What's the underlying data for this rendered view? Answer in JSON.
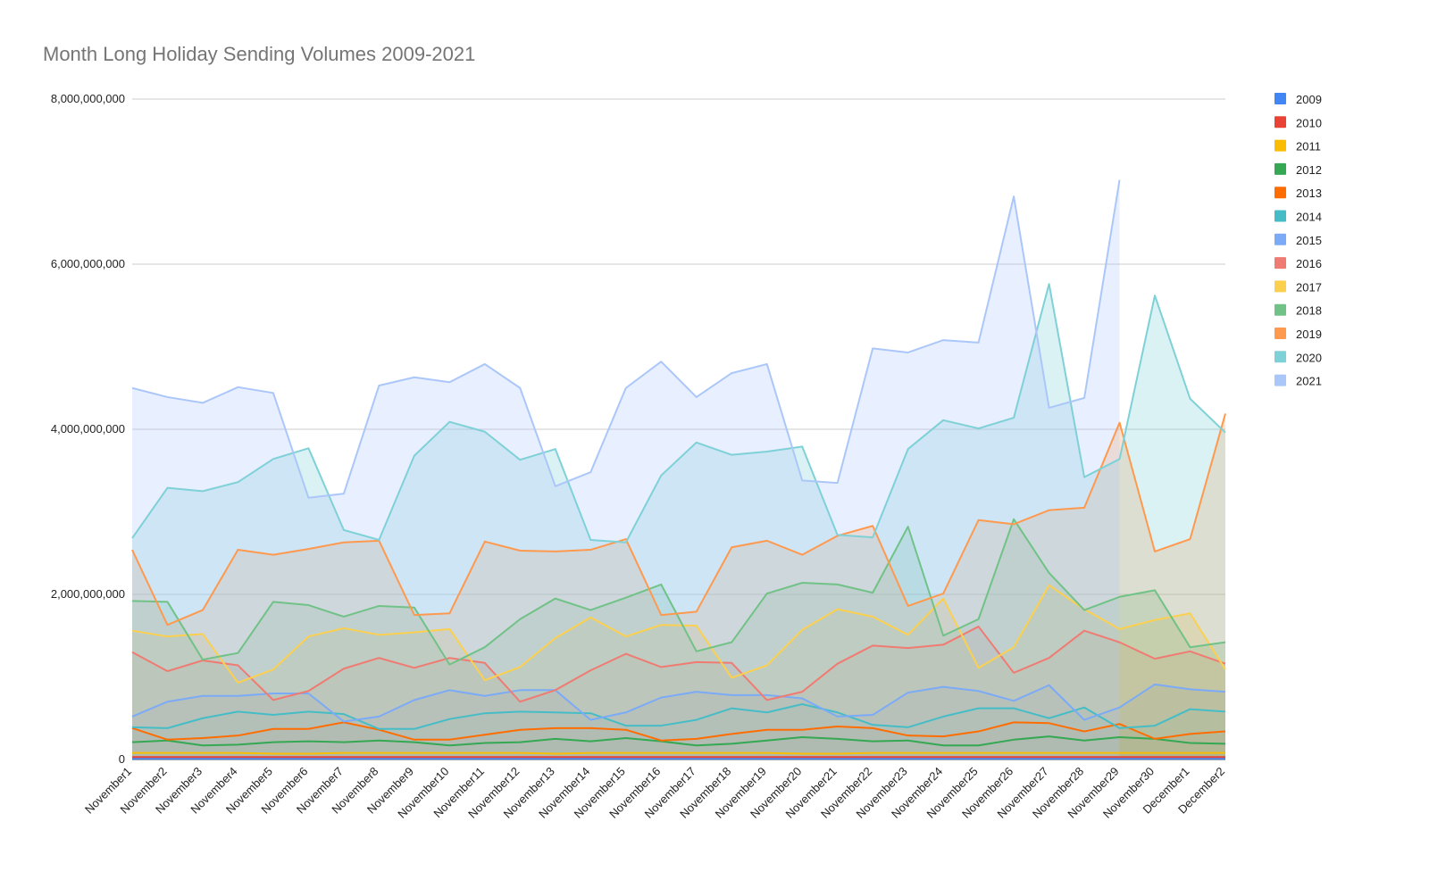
{
  "chart_data": {
    "type": "area",
    "title": "Month Long Holiday Sending Volumes 2009-2021",
    "categories": [
      "November1",
      "November2",
      "November3",
      "November4",
      "November5",
      "November6",
      "November7",
      "November8",
      "November9",
      "November10",
      "November11",
      "November12",
      "November13",
      "November14",
      "November15",
      "November16",
      "November17",
      "November18",
      "November19",
      "November20",
      "November21",
      "November22",
      "November23",
      "November24",
      "November25",
      "November26",
      "November27",
      "November28",
      "November29",
      "November30",
      "December1",
      "December2"
    ],
    "ylim": [
      0,
      8000000000.0
    ],
    "yticks": [
      0,
      {
        "value": 2000000000.0,
        "label": "2,000,000,000"
      },
      {
        "value": 4000000000.0,
        "label": "4,000,000,000"
      },
      {
        "value": 6000000000.0,
        "label": "6,000,000,000"
      },
      {
        "value": 8000000000.0,
        "label": "8,000,000,000"
      }
    ],
    "grid": true,
    "legend": "right",
    "series": [
      {
        "name": "2009",
        "color": "#4285f4",
        "values": [
          10000000.0,
          10000000.0,
          10000000.0,
          10000000.0,
          10000000.0,
          10000000.0,
          10000000.0,
          10000000.0,
          10000000.0,
          10000000.0,
          10000000.0,
          10000000.0,
          10000000.0,
          10000000.0,
          10000000.0,
          10000000.0,
          10000000.0,
          10000000.0,
          10000000.0,
          10000000.0,
          10000000.0,
          10000000.0,
          10000000.0,
          10000000.0,
          10000000.0,
          10000000.0,
          10000000.0,
          10000000.0,
          10000000.0,
          10000000.0,
          10000000.0,
          10000000.0
        ]
      },
      {
        "name": "2010",
        "color": "#ea4335",
        "values": [
          30000000.0,
          30000000.0,
          30000000.0,
          30000000.0,
          30000000.0,
          30000000.0,
          30000000.0,
          30000000.0,
          30000000.0,
          30000000.0,
          30000000.0,
          30000000.0,
          30000000.0,
          30000000.0,
          30000000.0,
          30000000.0,
          30000000.0,
          30000000.0,
          30000000.0,
          30000000.0,
          30000000.0,
          30000000.0,
          30000000.0,
          30000000.0,
          30000000.0,
          30000000.0,
          30000000.0,
          30000000.0,
          30000000.0,
          30000000.0,
          30000000.0,
          30000000.0
        ]
      },
      {
        "name": "2011",
        "color": "#fbbc04",
        "values": [
          80000000.0,
          80000000.0,
          80000000.0,
          80000000.0,
          70000000.0,
          70000000.0,
          80000000.0,
          80000000.0,
          80000000.0,
          80000000.0,
          80000000.0,
          80000000.0,
          70000000.0,
          80000000.0,
          80000000.0,
          80000000.0,
          80000000.0,
          80000000.0,
          80000000.0,
          70000000.0,
          70000000.0,
          80000000.0,
          80000000.0,
          80000000.0,
          80000000.0,
          80000000.0,
          80000000.0,
          80000000.0,
          80000000.0,
          80000000.0,
          80000000.0,
          80000000.0
        ]
      },
      {
        "name": "2012",
        "color": "#34a853",
        "values": [
          210000000.0,
          230000000.0,
          170000000.0,
          180000000.0,
          210000000.0,
          220000000.0,
          210000000.0,
          230000000.0,
          210000000.0,
          170000000.0,
          200000000.0,
          210000000.0,
          250000000.0,
          220000000.0,
          260000000.0,
          220000000.0,
          170000000.0,
          190000000.0,
          230000000.0,
          270000000.0,
          250000000.0,
          220000000.0,
          230000000.0,
          170000000.0,
          170000000.0,
          240000000.0,
          280000000.0,
          230000000.0,
          270000000.0,
          250000000.0,
          200000000.0,
          190000000.0
        ]
      },
      {
        "name": "2013",
        "color": "#ff6d01",
        "values": [
          380000000.0,
          240000000.0,
          260000000.0,
          290000000.0,
          370000000.0,
          370000000.0,
          450000000.0,
          360000000.0,
          240000000.0,
          240000000.0,
          300000000.0,
          360000000.0,
          380000000.0,
          380000000.0,
          360000000.0,
          230000000.0,
          250000000.0,
          310000000.0,
          360000000.0,
          360000000.0,
          400000000.0,
          380000000.0,
          290000000.0,
          280000000.0,
          340000000.0,
          450000000.0,
          440000000.0,
          340000000.0,
          430000000.0,
          250000000.0,
          310000000.0,
          340000000.0
        ]
      },
      {
        "name": "2014",
        "color": "#46bdc6",
        "values": [
          390000000.0,
          380000000.0,
          500000000.0,
          580000000.0,
          540000000.0,
          580000000.0,
          550000000.0,
          370000000.0,
          370000000.0,
          490000000.0,
          560000000.0,
          580000000.0,
          570000000.0,
          560000000.0,
          410000000.0,
          410000000.0,
          480000000.0,
          620000000.0,
          570000000.0,
          670000000.0,
          570000000.0,
          420000000.0,
          390000000.0,
          520000000.0,
          620000000.0,
          620000000.0,
          500000000.0,
          630000000.0,
          380000000.0,
          410000000.0,
          610000000.0,
          580000000.0
        ]
      },
      {
        "name": "2015",
        "color": "#7baaf7",
        "values": [
          520000000.0,
          700000000.0,
          770000000.0,
          770000000.0,
          800000000.0,
          800000000.0,
          460000000.0,
          520000000.0,
          720000000.0,
          840000000.0,
          770000000.0,
          840000000.0,
          840000000.0,
          480000000.0,
          570000000.0,
          750000000.0,
          820000000.0,
          780000000.0,
          780000000.0,
          740000000.0,
          520000000.0,
          540000000.0,
          810000000.0,
          880000000.0,
          830000000.0,
          710000000.0,
          900000000.0,
          480000000.0,
          630000000.0,
          910000000.0,
          850000000.0,
          820000000.0
        ]
      },
      {
        "name": "2016",
        "color": "#f07b72",
        "values": [
          1300000000.0,
          1070000000.0,
          1200000000.0,
          1140000000.0,
          720000000.0,
          830000000.0,
          1100000000.0,
          1230000000.0,
          1110000000.0,
          1230000000.0,
          1170000000.0,
          700000000.0,
          840000000.0,
          1080000000.0,
          1280000000.0,
          1120000000.0,
          1180000000.0,
          1170000000.0,
          720000000.0,
          820000000.0,
          1160000000.0,
          1380000000.0,
          1350000000.0,
          1390000000.0,
          1610000000.0,
          1050000000.0,
          1230000000.0,
          1560000000.0,
          1420000000.0,
          1220000000.0,
          1310000000.0,
          1160000000.0
        ]
      },
      {
        "name": "2017",
        "color": "#fcd04f",
        "values": [
          1560000000.0,
          1490000000.0,
          1520000000.0,
          930000000.0,
          1090000000.0,
          1490000000.0,
          1590000000.0,
          1510000000.0,
          1540000000.0,
          1580000000.0,
          960000000.0,
          1120000000.0,
          1470000000.0,
          1720000000.0,
          1490000000.0,
          1630000000.0,
          1620000000.0,
          990000000.0,
          1140000000.0,
          1570000000.0,
          1820000000.0,
          1730000000.0,
          1510000000.0,
          1950000000.0,
          1110000000.0,
          1360000000.0,
          2110000000.0,
          1820000000.0,
          1580000000.0,
          1690000000.0,
          1770000000.0,
          1090000000.0
        ]
      },
      {
        "name": "2018",
        "color": "#71c287",
        "values": [
          1920000000.0,
          1910000000.0,
          1210000000.0,
          1290000000.0,
          1910000000.0,
          1870000000.0,
          1730000000.0,
          1860000000.0,
          1840000000.0,
          1150000000.0,
          1360000000.0,
          1700000000.0,
          1950000000.0,
          1810000000.0,
          1960000000.0,
          2120000000.0,
          1310000000.0,
          1420000000.0,
          2010000000.0,
          2140000000.0,
          2120000000.0,
          2020000000.0,
          2820000000.0,
          1500000000.0,
          1700000000.0,
          2910000000.0,
          2260000000.0,
          1810000000.0,
          1970000000.0,
          2050000000.0,
          1360000000.0,
          1420000000.0
        ]
      },
      {
        "name": "2019",
        "color": "#ff994d",
        "values": [
          2540000000.0,
          1630000000.0,
          1810000000.0,
          2540000000.0,
          2480000000.0,
          2550000000.0,
          2630000000.0,
          2650000000.0,
          1750000000.0,
          1770000000.0,
          2640000000.0,
          2530000000.0,
          2520000000.0,
          2540000000.0,
          2670000000.0,
          1750000000.0,
          1790000000.0,
          2570000000.0,
          2650000000.0,
          2480000000.0,
          2710000000.0,
          2830000000.0,
          1860000000.0,
          2010000000.0,
          2900000000.0,
          2850000000.0,
          3020000000.0,
          3050000000.0,
          4080000000.0,
          2520000000.0,
          2670000000.0,
          4190000000.0
        ]
      },
      {
        "name": "2020",
        "color": "#7ed1d7",
        "values": [
          2680000000.0,
          3290000000.0,
          3250000000.0,
          3360000000.0,
          3640000000.0,
          3770000000.0,
          2780000000.0,
          2660000000.0,
          3680000000.0,
          4090000000.0,
          3970000000.0,
          3630000000.0,
          3760000000.0,
          2660000000.0,
          2630000000.0,
          3440000000.0,
          3840000000.0,
          3690000000.0,
          3730000000.0,
          3790000000.0,
          2720000000.0,
          2690000000.0,
          3760000000.0,
          4110000000.0,
          4010000000.0,
          4140000000.0,
          5760000000.0,
          3420000000.0,
          3640000000.0,
          5620000000.0,
          4370000000.0,
          3960000000.0
        ]
      },
      {
        "name": "2021",
        "color": "#abc7fa",
        "values": [
          4500000000.0,
          4390000000.0,
          4320000000.0,
          4510000000.0,
          4440000000.0,
          3170000000.0,
          3220000000.0,
          4530000000.0,
          4630000000.0,
          4570000000.0,
          4790000000.0,
          4500000000.0,
          3310000000.0,
          3480000000.0,
          4500000000.0,
          4820000000.0,
          4390000000.0,
          4680000000.0,
          4790000000.0,
          3380000000.0,
          3350000000.0,
          4980000000.0,
          4930000000.0,
          5080000000.0,
          5050000000.0,
          6820000000.0,
          4260000000.0,
          4380000000.0,
          7020000000.0,
          null,
          null,
          null
        ]
      }
    ]
  }
}
